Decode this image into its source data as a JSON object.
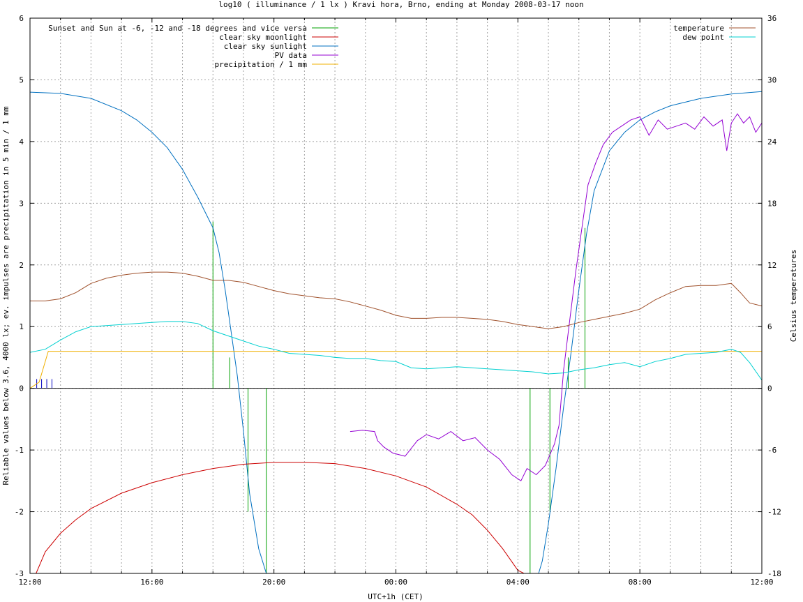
{
  "chart_data": {
    "type": "line",
    "title": "log10 ( illuminance / 1 lx ) Kravi hora, Brno, ending at Monday 2008-03-17 noon",
    "xlabel": "UTC+1h (CET)",
    "ylabel": "Reliable values below 3.6, 4000 lx; ev. impulses are precipitation in 5 min / 1 mm",
    "y2label": "Celsius temperatures",
    "xlim": [
      0,
      24
    ],
    "ylim": [
      -3,
      6
    ],
    "y2lim": [
      -18,
      36
    ],
    "grid": true,
    "x_ticks": [
      {
        "v": 0,
        "label": "12:00"
      },
      {
        "v": 4,
        "label": "16:00"
      },
      {
        "v": 8,
        "label": "20:00"
      },
      {
        "v": 12,
        "label": "00:00"
      },
      {
        "v": 16,
        "label": "04:00"
      },
      {
        "v": 20,
        "label": "08:00"
      },
      {
        "v": 24,
        "label": "12:00"
      }
    ],
    "y_ticks": [
      {
        "v": -3,
        "label": "-3"
      },
      {
        "v": -2,
        "label": "-2"
      },
      {
        "v": -1,
        "label": "-1"
      },
      {
        "v": 0,
        "label": "0"
      },
      {
        "v": 1,
        "label": "1"
      },
      {
        "v": 2,
        "label": "2"
      },
      {
        "v": 3,
        "label": "3"
      },
      {
        "v": 4,
        "label": "4"
      },
      {
        "v": 5,
        "label": "5"
      },
      {
        "v": 6,
        "label": "6"
      }
    ],
    "y2_ticks": [
      {
        "v": -18,
        "label": "-18"
      },
      {
        "v": -12,
        "label": "-12"
      },
      {
        "v": -6,
        "label": "-6"
      },
      {
        "v": 0,
        "label": "0"
      },
      {
        "v": 6,
        "label": "6"
      },
      {
        "v": 12,
        "label": "12"
      },
      {
        "v": 18,
        "label": "18"
      },
      {
        "v": 24,
        "label": "24"
      },
      {
        "v": 30,
        "label": "30"
      },
      {
        "v": 36,
        "label": "36"
      }
    ],
    "legend_left": [
      {
        "name": "Sunset and Sun at -6, -12 and -18 degrees and vice versa",
        "color": "#00a000"
      },
      {
        "name": "clear sky moonlight",
        "color": "#cc0000"
      },
      {
        "name": "clear sky sunlight",
        "color": "#0070c0"
      },
      {
        "name": "PV data",
        "color": "#9400d3"
      },
      {
        "name": "precipitation / 1 mm",
        "color": "#f0b000"
      }
    ],
    "legend_right": [
      {
        "name": "temperature",
        "color": "#a0522d"
      },
      {
        "name": "dew point",
        "color": "#00d0d0"
      }
    ],
    "sun_event_lines": [
      {
        "x": 6.0,
        "y0": 0,
        "y1": 2.7
      },
      {
        "x": 6.55,
        "y0": 0,
        "y1": 0.5
      },
      {
        "x": 7.15,
        "y0": -2.0,
        "y1": 0
      },
      {
        "x": 7.75,
        "y0": -3.0,
        "y1": 0
      },
      {
        "x": 16.4,
        "y0": -3.0,
        "y1": 0
      },
      {
        "x": 17.05,
        "y0": -2.0,
        "y1": 0
      },
      {
        "x": 17.65,
        "y0": 0,
        "y1": 0.5
      },
      {
        "x": 18.2,
        "y0": 0,
        "y1": 2.6
      }
    ],
    "precip_impulses": [
      {
        "x": 0.22,
        "y": 0.15
      },
      {
        "x": 0.38,
        "y": 0.15
      },
      {
        "x": 0.55,
        "y": 0.15
      },
      {
        "x": 0.72,
        "y": 0.15
      }
    ],
    "series": [
      {
        "name": "clear sky sunlight",
        "color": "#0070c0",
        "axis": "y",
        "x": [
          0,
          1,
          2,
          3,
          3.5,
          4,
          4.5,
          5,
          5.5,
          5.8,
          6,
          6.2,
          6.4,
          6.6,
          6.8,
          7,
          7.2,
          7.5,
          7.75,
          8.0,
          16.5,
          16.8,
          17,
          17.25,
          17.5,
          17.75,
          18,
          18.25,
          18.5,
          19,
          19.5,
          20,
          20.5,
          21,
          22,
          23,
          24
        ],
        "y": [
          4.8,
          4.78,
          4.7,
          4.5,
          4.35,
          4.15,
          3.9,
          3.55,
          3.1,
          2.8,
          2.6,
          2.2,
          1.6,
          0.9,
          0.2,
          -0.7,
          -1.7,
          -2.6,
          -3.0,
          -3.3,
          -3.3,
          -2.8,
          -2.2,
          -1.3,
          -0.3,
          0.6,
          1.6,
          2.5,
          3.2,
          3.85,
          4.15,
          4.35,
          4.48,
          4.58,
          4.7,
          4.77,
          4.81
        ]
      },
      {
        "name": "clear sky moonlight",
        "color": "#cc0000",
        "axis": "y",
        "x": [
          0.2,
          0.5,
          1,
          1.5,
          2,
          3,
          4,
          5,
          6,
          7,
          8,
          9,
          10,
          11,
          12,
          13,
          14,
          14.5,
          15,
          15.5,
          16.0,
          16.2
        ],
        "y": [
          -3.0,
          -2.65,
          -2.35,
          -2.13,
          -1.95,
          -1.7,
          -1.53,
          -1.4,
          -1.3,
          -1.23,
          -1.2,
          -1.2,
          -1.22,
          -1.3,
          -1.42,
          -1.6,
          -1.88,
          -2.05,
          -2.3,
          -2.6,
          -2.95,
          -3.0
        ]
      },
      {
        "name": "PV data",
        "color": "#9400d3",
        "axis": "y",
        "x": [
          10.5,
          10.9,
          11.3,
          11.4,
          11.6,
          11.9,
          12.3,
          12.7,
          13.0,
          13.4,
          13.8,
          14.2,
          14.6,
          15.0,
          15.4,
          15.8,
          16.1,
          16.3,
          16.6,
          16.9,
          17.2,
          17.35,
          17.5,
          17.7,
          17.9,
          18.1,
          18.3,
          18.55,
          18.8,
          19.1,
          19.4,
          19.7,
          20.0,
          20.3,
          20.6,
          20.9,
          21.2,
          21.5,
          21.8,
          22.1,
          22.4,
          22.7,
          22.85,
          23.0,
          23.2,
          23.4,
          23.6,
          23.8,
          24.0
        ],
        "y": [
          -0.7,
          -0.68,
          -0.7,
          -0.85,
          -0.95,
          -1.05,
          -1.1,
          -0.85,
          -0.75,
          -0.82,
          -0.7,
          -0.85,
          -0.8,
          -1.0,
          -1.15,
          -1.4,
          -1.5,
          -1.3,
          -1.4,
          -1.25,
          -0.9,
          -0.6,
          0.3,
          1.1,
          1.9,
          2.6,
          3.3,
          3.65,
          3.95,
          4.15,
          4.25,
          4.35,
          4.4,
          4.1,
          4.35,
          4.2,
          4.25,
          4.3,
          4.2,
          4.4,
          4.25,
          4.35,
          3.85,
          4.3,
          4.45,
          4.3,
          4.4,
          4.15,
          4.3
        ]
      },
      {
        "name": "precipitation / 1 mm",
        "color": "#f0b000",
        "axis": "y",
        "x": [
          0,
          0.3,
          0.6,
          24
        ],
        "y": [
          0.0,
          0.1,
          0.6,
          0.6
        ]
      },
      {
        "name": "temperature",
        "color": "#a0522d",
        "axis": "y2",
        "x": [
          0,
          0.5,
          1,
          1.5,
          2,
          2.5,
          3,
          3.5,
          4,
          4.5,
          5,
          5.5,
          6,
          6.5,
          7,
          7.5,
          8,
          8.5,
          9,
          9.5,
          10,
          10.5,
          11,
          11.5,
          12,
          12.5,
          13,
          13.5,
          14,
          14.5,
          15,
          15.5,
          16,
          16.5,
          17,
          17.5,
          18,
          18.5,
          19,
          19.5,
          20,
          20.5,
          21,
          21.5,
          22,
          22.5,
          23,
          23.3,
          23.6,
          24
        ],
        "y": [
          8.5,
          8.5,
          8.7,
          9.3,
          10.2,
          10.7,
          11.0,
          11.2,
          11.3,
          11.3,
          11.2,
          10.9,
          10.5,
          10.5,
          10.3,
          9.9,
          9.5,
          9.2,
          9.0,
          8.8,
          8.7,
          8.4,
          8.0,
          7.6,
          7.1,
          6.8,
          6.8,
          6.9,
          6.9,
          6.8,
          6.7,
          6.5,
          6.2,
          6.0,
          5.8,
          6.0,
          6.4,
          6.7,
          7.0,
          7.3,
          7.7,
          8.6,
          9.3,
          9.9,
          10.0,
          10.0,
          10.2,
          9.3,
          8.3,
          8.0
        ]
      },
      {
        "name": "dew point",
        "color": "#00d0d0",
        "axis": "y2",
        "x": [
          0,
          0.5,
          1,
          1.5,
          2,
          2.5,
          3,
          3.5,
          4,
          4.5,
          5,
          5.5,
          6,
          6.5,
          7,
          7.5,
          8,
          8.5,
          9,
          9.5,
          10,
          10.5,
          11,
          11.5,
          12,
          12.5,
          13,
          13.5,
          14,
          14.5,
          15,
          15.5,
          16,
          16.5,
          17,
          17.5,
          18,
          18.5,
          19,
          19.5,
          20,
          20.5,
          21,
          21.5,
          22,
          22.5,
          23,
          23.3,
          23.6,
          24
        ],
        "y": [
          3.5,
          3.8,
          4.7,
          5.5,
          6.0,
          6.1,
          6.2,
          6.3,
          6.4,
          6.5,
          6.5,
          6.3,
          5.6,
          5.1,
          4.6,
          4.1,
          3.8,
          3.4,
          3.3,
          3.2,
          3.0,
          2.9,
          2.9,
          2.7,
          2.6,
          2.0,
          1.9,
          2.0,
          2.1,
          2.0,
          1.9,
          1.8,
          1.7,
          1.6,
          1.4,
          1.5,
          1.8,
          2.0,
          2.3,
          2.5,
          2.1,
          2.6,
          2.9,
          3.3,
          3.4,
          3.5,
          3.8,
          3.5,
          2.5,
          0.8
        ]
      }
    ]
  }
}
